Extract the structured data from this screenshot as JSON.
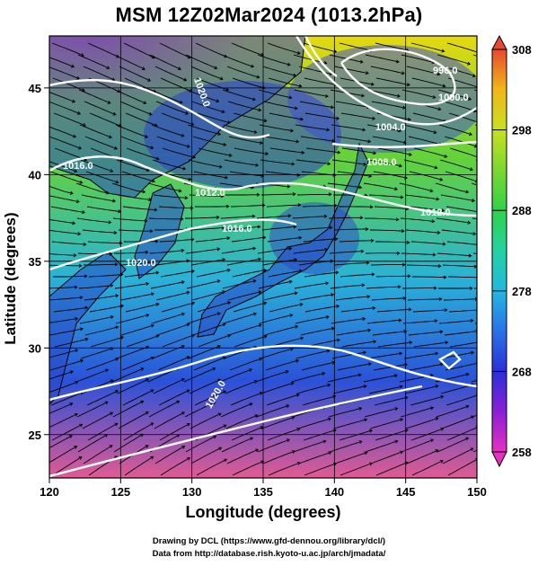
{
  "title": "MSM 12Z02Mar2024 (1013.2hPa)",
  "xlabel": "Longitude (degrees)",
  "ylabel": "Latitude  (degrees)",
  "x_ticks": [
    "120",
    "125",
    "130",
    "135",
    "140",
    "145",
    "150"
  ],
  "y_ticks": [
    "25",
    "30",
    "35",
    "40",
    "45"
  ],
  "colorbar_ticks": [
    "308",
    "298",
    "288",
    "278",
    "268",
    "258"
  ],
  "credits": {
    "line1": "Drawing by DCL (https://www.gfd-dennou.org/library/dcl/)",
    "line2": "Data from http://database.rish.kyoto-u.ac.jp/arch/jmadata/"
  },
  "isobar_labels": [
    "1020.0",
    "1016.0",
    "1012.0",
    "1016.0",
    "1020.0",
    "1020.0",
    "996.0",
    "1000.0",
    "1004.0",
    "1008.0",
    "1012.0"
  ],
  "colors": {
    "isobar": "#ffffff",
    "streamline": "#000000",
    "coast": "#000000",
    "colorbar_top": "#e84830",
    "colorbar_bottom": "#e830c0"
  },
  "map_data": {
    "type": "streamline-temperature-map",
    "lon_range": [
      120,
      150
    ],
    "lat_range": [
      22.5,
      48
    ],
    "temperature_range": [
      258,
      308
    ],
    "temperature_unit": "K",
    "grid_lines_lon": [
      120,
      125,
      130,
      135,
      140,
      145,
      150
    ],
    "grid_lines_lat": [
      25,
      30,
      35,
      40,
      45
    ]
  }
}
